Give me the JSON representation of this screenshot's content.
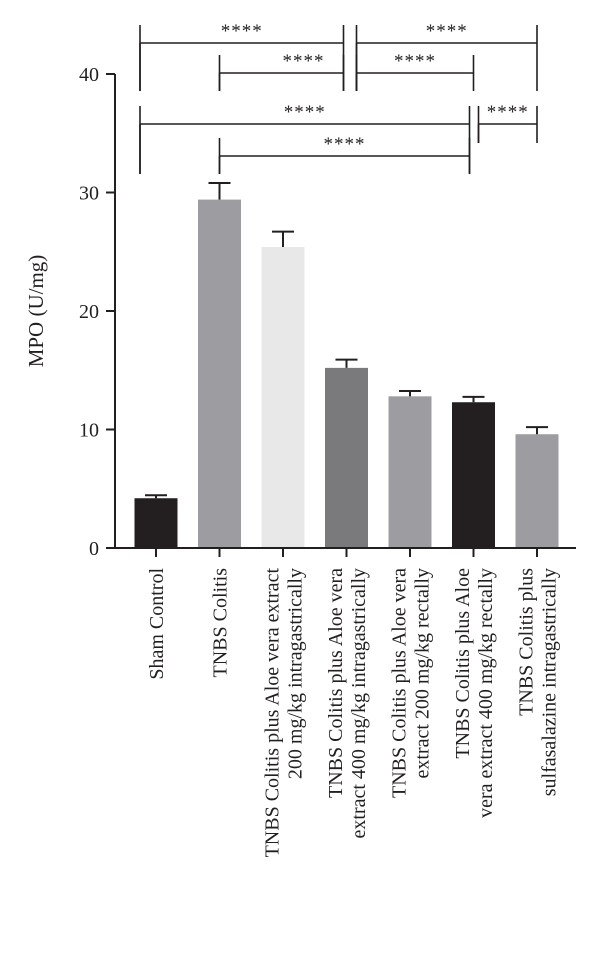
{
  "chart_data": {
    "type": "bar",
    "title": "",
    "xlabel": "",
    "ylabel": "MPO (U/mg)",
    "ylim": [
      0,
      40
    ],
    "yticks": [
      0,
      10,
      20,
      30,
      40
    ],
    "grid": false,
    "categories": [
      [
        "Sham Control"
      ],
      [
        "TNBS Colitis"
      ],
      [
        "TNBS Colitis plus Aloe vera extract",
        "200 mg/kg intragastrically"
      ],
      [
        "TNBS Colitis plus Aloe vera",
        "extract 400 mg/kg intragastrically"
      ],
      [
        "TNBS Colitis plus Aloe vera",
        "extract 200 mg/kg rectally"
      ],
      [
        "TNBS Colitis plus Aloe",
        "vera extract 400 mg/kg rectally"
      ],
      [
        "TNBS Colitis plus",
        "sulfasalazine intragastrically"
      ]
    ],
    "values": [
      4.2,
      29.4,
      25.4,
      15.2,
      12.8,
      12.3,
      9.6
    ],
    "errors": [
      0.25,
      1.4,
      1.3,
      0.7,
      0.45,
      0.45,
      0.6
    ],
    "colors": [
      "#231f20",
      "#9d9da1",
      "#e8e8e8",
      "#7a7a7c",
      "#9d9da1",
      "#231f20",
      "#9d9da1"
    ],
    "significance": [
      {
        "from": 0,
        "to": 3,
        "label": "****"
      },
      {
        "from": 1,
        "to": 3,
        "label": "****"
      },
      {
        "from": 3,
        "to": 6,
        "label": "****"
      },
      {
        "from": 3,
        "to": 5,
        "label": "****"
      },
      {
        "from": 0,
        "to": 5,
        "label": "****"
      },
      {
        "from": 1,
        "to": 5,
        "label": "****"
      },
      {
        "from": 5,
        "to": 6,
        "label": "****"
      }
    ]
  }
}
